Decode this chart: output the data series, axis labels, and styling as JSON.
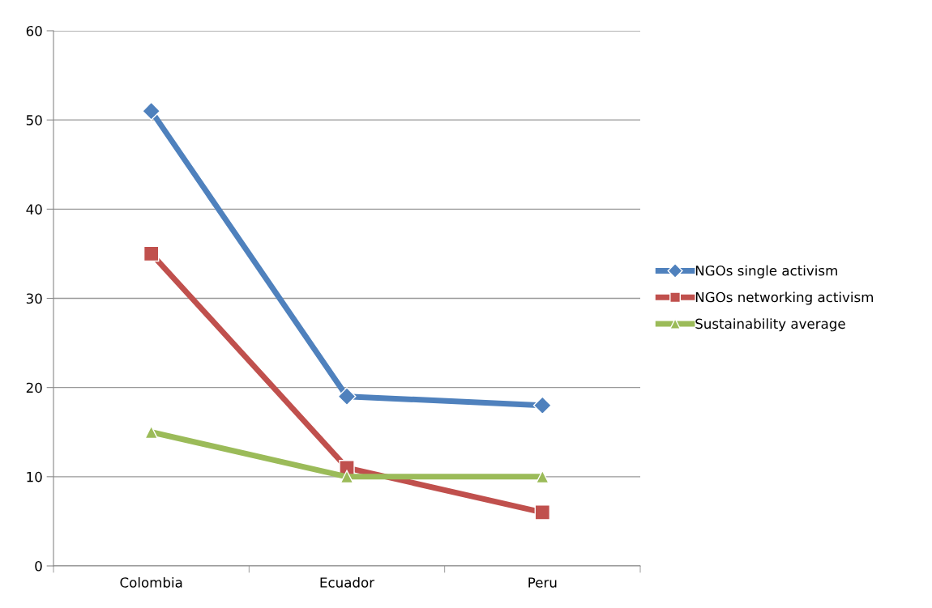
{
  "chart_data": {
    "type": "line",
    "categories": [
      "Colombia",
      "Ecuador",
      "Peru"
    ],
    "series": [
      {
        "name": "NGOs single activism",
        "color": "#4f81bd",
        "values": [
          51,
          19,
          18
        ],
        "marker": "diamond"
      },
      {
        "name": "NGOs networking activism",
        "color": "#c0504d",
        "values": [
          35,
          11,
          6
        ],
        "marker": "square"
      },
      {
        "name": "Sustainability average",
        "color": "#9bbb59",
        "values": [
          15,
          10,
          10
        ],
        "marker": "triangle"
      }
    ],
    "ylim": [
      0,
      60
    ],
    "yticks": [
      0,
      10,
      20,
      30,
      40,
      50,
      60
    ],
    "grid": "y",
    "legend": "right",
    "line_style": "solid"
  }
}
